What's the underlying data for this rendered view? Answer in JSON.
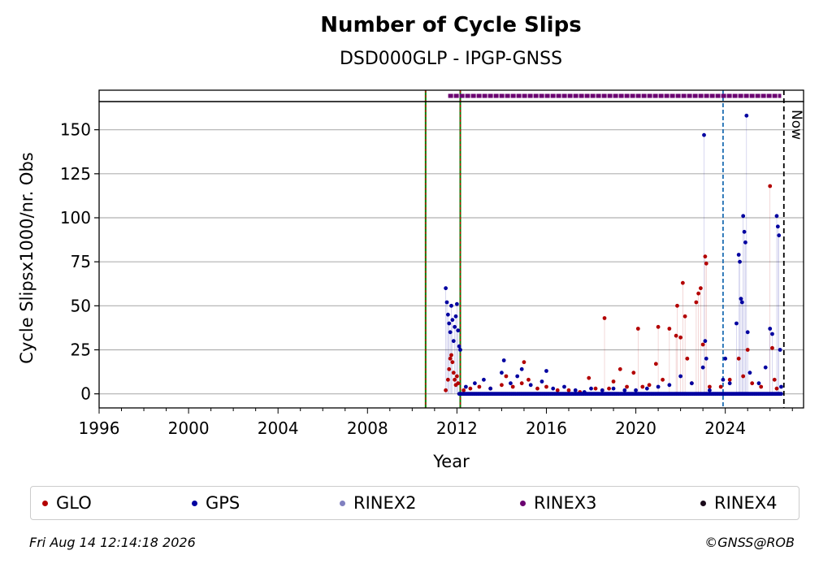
{
  "chart_data": {
    "type": "scatter",
    "title": "Number of Cycle Slips",
    "subtitle": "DSD000GLP - IPGP-GNSS",
    "xlabel": "Year",
    "ylabel": "Cycle Slipsx1000/nr. Obs",
    "xlim": [
      1996,
      2027.5
    ],
    "ylim": [
      -8,
      166
    ],
    "x_ticks": [
      "1996",
      "2000",
      "2004",
      "2008",
      "2012",
      "2016",
      "2020",
      "2024"
    ],
    "y_ticks": [
      "0",
      "25",
      "50",
      "75",
      "100",
      "125",
      "150"
    ],
    "grid": "horizontal",
    "legend_position": "bottom",
    "now_label": "Now",
    "now_x": 2026.62,
    "vertical_lines": [
      {
        "x": 2010.6,
        "style": "green-red dashed"
      },
      {
        "x": 2012.15,
        "style": "green-red dashed"
      },
      {
        "x": 2023.9,
        "style": "blue dashed"
      }
    ],
    "rinex3_band": {
      "start": 2011.5,
      "end": 2026.5
    },
    "series": [
      {
        "name": "GLO",
        "color": "#b30000",
        "points": [
          [
            2011.5,
            2
          ],
          [
            2011.6,
            8
          ],
          [
            2011.65,
            14
          ],
          [
            2011.7,
            20
          ],
          [
            2011.75,
            22
          ],
          [
            2011.8,
            18
          ],
          [
            2011.85,
            12
          ],
          [
            2011.9,
            8
          ],
          [
            2011.95,
            5
          ],
          [
            2012.0,
            10
          ],
          [
            2012.05,
            6
          ],
          [
            2012.3,
            2
          ],
          [
            2012.6,
            3
          ],
          [
            2013.0,
            4
          ],
          [
            2013.5,
            3
          ],
          [
            2014.0,
            5
          ],
          [
            2014.2,
            10
          ],
          [
            2014.5,
            4
          ],
          [
            2014.9,
            6
          ],
          [
            2015.0,
            18
          ],
          [
            2015.2,
            8
          ],
          [
            2015.6,
            3
          ],
          [
            2016.0,
            4
          ],
          [
            2016.5,
            2
          ],
          [
            2017.0,
            2
          ],
          [
            2017.5,
            1
          ],
          [
            2017.9,
            9
          ],
          [
            2018.2,
            3
          ],
          [
            2018.6,
            43
          ],
          [
            2018.8,
            3
          ],
          [
            2019.0,
            7
          ],
          [
            2019.3,
            14
          ],
          [
            2019.6,
            4
          ],
          [
            2019.9,
            12
          ],
          [
            2020.1,
            37
          ],
          [
            2020.3,
            4
          ],
          [
            2020.6,
            5
          ],
          [
            2020.9,
            17
          ],
          [
            2021.0,
            38
          ],
          [
            2021.2,
            8
          ],
          [
            2021.5,
            37
          ],
          [
            2021.8,
            33
          ],
          [
            2021.85,
            50
          ],
          [
            2022.0,
            32
          ],
          [
            2022.1,
            63
          ],
          [
            2022.2,
            44
          ],
          [
            2022.3,
            20
          ],
          [
            2022.5,
            6
          ],
          [
            2022.7,
            52
          ],
          [
            2022.8,
            57
          ],
          [
            2022.9,
            60
          ],
          [
            2023.0,
            28
          ],
          [
            2023.1,
            78
          ],
          [
            2023.15,
            74
          ],
          [
            2023.3,
            4
          ],
          [
            2023.8,
            4
          ],
          [
            2024.2,
            8
          ],
          [
            2024.6,
            20
          ],
          [
            2024.8,
            10
          ],
          [
            2025.0,
            25
          ],
          [
            2025.2,
            6
          ],
          [
            2025.6,
            4
          ],
          [
            2026.0,
            118
          ],
          [
            2026.1,
            26
          ],
          [
            2026.2,
            8
          ],
          [
            2026.3,
            3
          ]
        ]
      },
      {
        "name": "GPS",
        "color": "#0000a0",
        "points": [
          [
            2011.5,
            60
          ],
          [
            2011.55,
            52
          ],
          [
            2011.6,
            45
          ],
          [
            2011.65,
            40
          ],
          [
            2011.7,
            35
          ],
          [
            2011.75,
            50
          ],
          [
            2011.8,
            42
          ],
          [
            2011.85,
            30
          ],
          [
            2011.9,
            38
          ],
          [
            2011.95,
            44
          ],
          [
            2012.0,
            51
          ],
          [
            2012.05,
            36
          ],
          [
            2012.1,
            27
          ],
          [
            2012.15,
            25
          ],
          [
            2012.4,
            4
          ],
          [
            2012.8,
            6
          ],
          [
            2013.2,
            8
          ],
          [
            2013.5,
            3
          ],
          [
            2014.0,
            12
          ],
          [
            2014.1,
            19
          ],
          [
            2014.4,
            6
          ],
          [
            2014.7,
            10
          ],
          [
            2014.9,
            14
          ],
          [
            2015.3,
            5
          ],
          [
            2015.8,
            7
          ],
          [
            2016.0,
            13
          ],
          [
            2016.3,
            3
          ],
          [
            2016.8,
            4
          ],
          [
            2017.3,
            2
          ],
          [
            2017.7,
            1
          ],
          [
            2018.0,
            3
          ],
          [
            2018.5,
            2
          ],
          [
            2019.0,
            3
          ],
          [
            2019.5,
            2
          ],
          [
            2020.0,
            2
          ],
          [
            2020.5,
            3
          ],
          [
            2021.0,
            4
          ],
          [
            2021.5,
            5
          ],
          [
            2022.0,
            10
          ],
          [
            2022.5,
            6
          ],
          [
            2023.0,
            15
          ],
          [
            2023.05,
            147
          ],
          [
            2023.1,
            30
          ],
          [
            2023.15,
            20
          ],
          [
            2023.3,
            2
          ],
          [
            2023.9,
            8
          ],
          [
            2024.0,
            20
          ],
          [
            2024.2,
            6
          ],
          [
            2024.5,
            40
          ],
          [
            2024.6,
            79
          ],
          [
            2024.65,
            75
          ],
          [
            2024.7,
            54
          ],
          [
            2024.75,
            52
          ],
          [
            2024.8,
            101
          ],
          [
            2024.85,
            92
          ],
          [
            2024.9,
            86
          ],
          [
            2024.95,
            158
          ],
          [
            2025.0,
            35
          ],
          [
            2025.1,
            12
          ],
          [
            2025.5,
            6
          ],
          [
            2025.8,
            15
          ],
          [
            2026.0,
            37
          ],
          [
            2026.1,
            34
          ],
          [
            2026.3,
            101
          ],
          [
            2026.35,
            95
          ],
          [
            2026.4,
            90
          ],
          [
            2026.45,
            25
          ],
          [
            2026.5,
            4
          ]
        ]
      }
    ]
  },
  "legend": {
    "items": [
      {
        "label": "GLO",
        "color": "#b30000"
      },
      {
        "label": "GPS",
        "color": "#0000a0"
      },
      {
        "label": "RINEX2",
        "color": "#8080c0"
      },
      {
        "label": "RINEX3",
        "color": "#6a0070"
      },
      {
        "label": "RINEX4",
        "color": "#1a0a1a"
      }
    ]
  },
  "footer": {
    "timestamp": "Fri Aug 14 12:14:18 2026",
    "credit": "©GNSS@ROB"
  }
}
